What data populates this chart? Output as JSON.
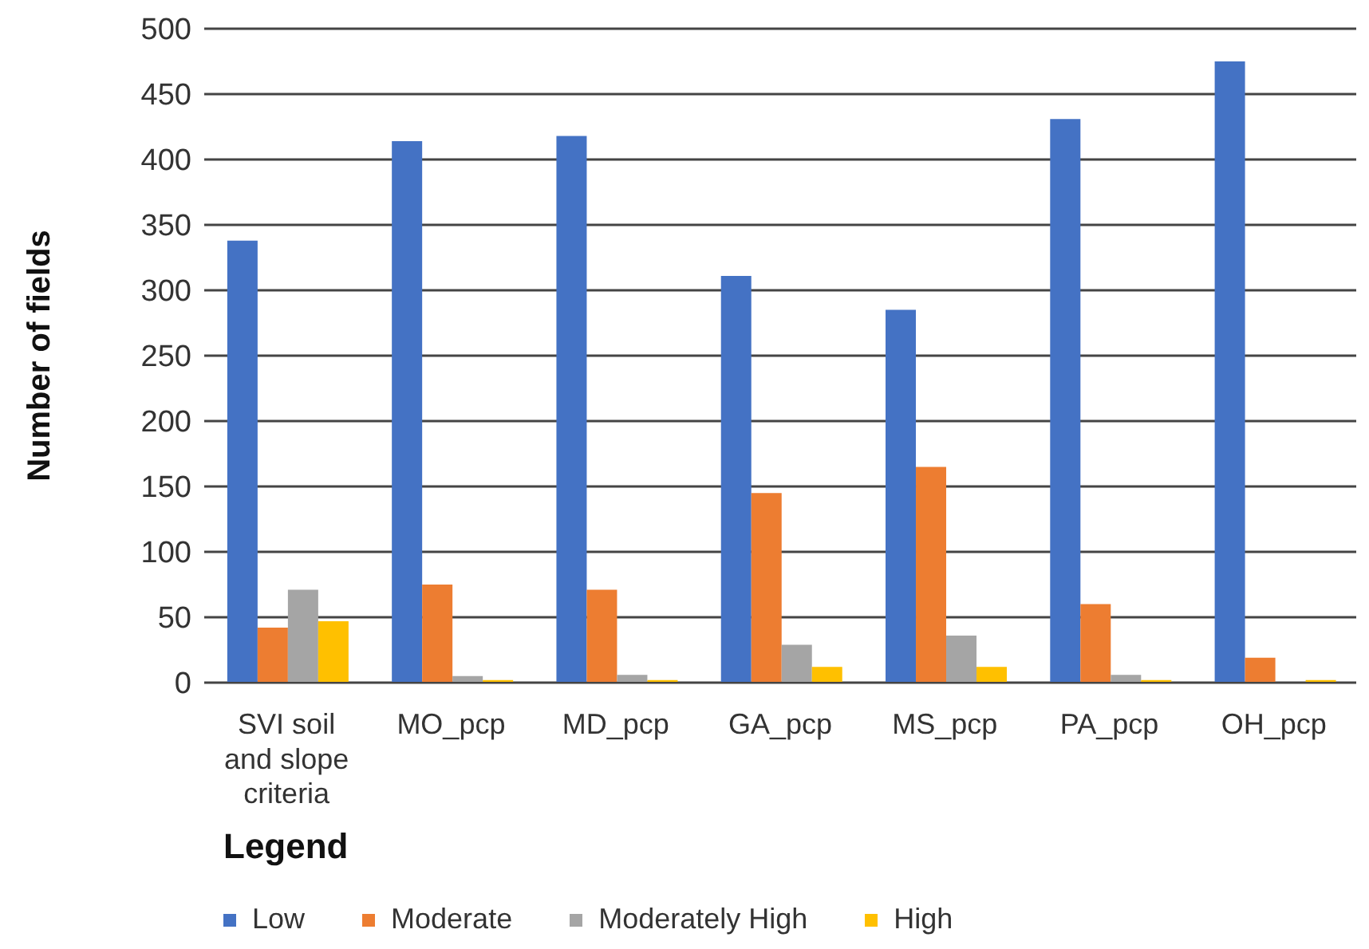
{
  "chart_data": {
    "type": "bar",
    "ylabel": "Number of fields",
    "legend_title": "Legend",
    "categories": [
      "SVI soil and slope criteria",
      "MO_pcp",
      "MD_pcp",
      "GA_pcp",
      "MS_pcp",
      "PA_pcp",
      "OH_pcp"
    ],
    "series": [
      {
        "name": "Low",
        "color": "#4472c4",
        "values": [
          338,
          414,
          418,
          311,
          285,
          431,
          475
        ]
      },
      {
        "name": "Moderate",
        "color": "#ed7d31",
        "values": [
          42,
          75,
          71,
          145,
          165,
          60,
          19
        ]
      },
      {
        "name": "Moderately High",
        "color": "#a5a5a5",
        "values": [
          71,
          5,
          6,
          29,
          36,
          6,
          0
        ]
      },
      {
        "name": "High",
        "color": "#ffc000",
        "values": [
          47,
          2,
          2,
          12,
          12,
          2,
          2
        ]
      }
    ],
    "ylim": [
      0,
      500
    ],
    "yticks": [
      0,
      50,
      100,
      150,
      200,
      250,
      300,
      350,
      400,
      450,
      500
    ],
    "grid": "y",
    "legend": "bottom left"
  }
}
